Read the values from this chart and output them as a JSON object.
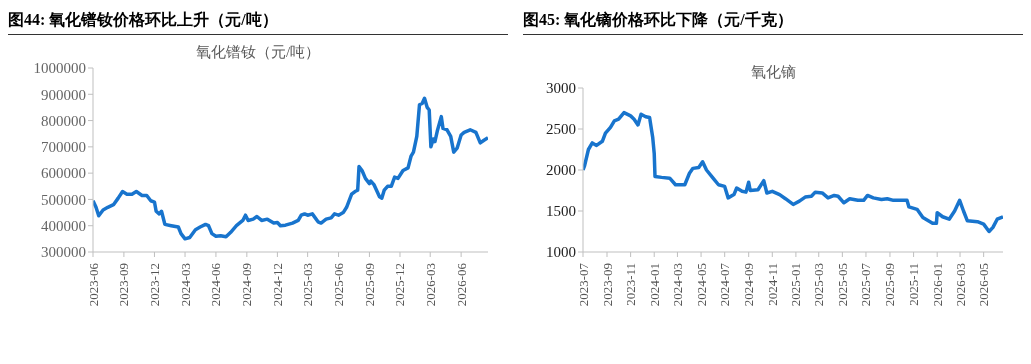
{
  "chart_data": [
    {
      "type": "line",
      "title": "图44:  氧化镨钕价格环比上升（元/吨）",
      "subtitle": "氧化镨钕（元/吨）",
      "color": "#1874cd",
      "x": [
        "2023-06-01",
        "2023-06-10",
        "2023-06-18",
        "2023-07-01",
        "2023-07-15",
        "2023-08-01",
        "2023-08-15",
        "2023-08-28",
        "2023-09-10",
        "2023-09-25",
        "2023-10-08",
        "2023-10-25",
        "2023-11-08",
        "2023-11-20",
        "2023-12-01",
        "2023-12-06",
        "2023-12-15",
        "2023-12-22",
        "2024-01-01",
        "2024-01-20",
        "2024-02-10",
        "2024-02-18",
        "2024-03-01",
        "2024-03-15",
        "2024-04-01",
        "2024-04-15",
        "2024-05-01",
        "2024-05-10",
        "2024-05-20",
        "2024-06-01",
        "2024-06-15",
        "2024-07-01",
        "2024-07-15",
        "2024-08-01",
        "2024-08-20",
        "2024-08-28",
        "2024-09-05",
        "2024-09-20",
        "2024-10-01",
        "2024-10-15",
        "2024-11-01",
        "2024-11-20",
        "2024-12-01",
        "2024-12-10",
        "2024-12-25",
        "2025-01-15",
        "2025-02-01",
        "2025-02-10",
        "2025-02-20",
        "2025-03-01",
        "2025-03-15",
        "2025-04-01",
        "2025-04-10",
        "2025-04-25",
        "2025-05-10",
        "2025-05-20",
        "2025-06-01",
        "2025-06-15",
        "2025-06-25",
        "2025-07-10",
        "2025-07-20",
        "2025-07-28",
        "2025-08-01",
        "2025-08-10",
        "2025-08-20",
        "2025-09-01",
        "2025-09-05",
        "2025-09-15",
        "2025-10-01",
        "2025-10-08",
        "2025-10-15",
        "2025-10-25",
        "2025-11-05",
        "2025-11-15",
        "2025-11-25",
        "2025-12-10",
        "2025-12-25",
        "2026-01-03",
        "2026-01-10",
        "2026-01-20",
        "2026-01-28",
        "2026-02-05",
        "2026-02-12",
        "2026-02-20",
        "2026-02-26",
        "2026-03-03",
        "2026-03-10",
        "2026-03-15",
        "2026-03-22",
        "2026-04-03",
        "2026-04-08",
        "2026-04-20",
        "2026-05-01",
        "2026-05-10",
        "2026-05-20",
        "2026-06-01",
        "2026-06-10",
        "2026-06-28",
        "2026-07-15",
        "2026-07-28",
        "2026-08-08",
        "2026-08-20"
      ],
      "values": [
        495000,
        470000,
        438000,
        460000,
        470000,
        480000,
        505000,
        530000,
        520000,
        520000,
        530000,
        515000,
        515000,
        495000,
        490000,
        455000,
        445000,
        455000,
        405000,
        400000,
        395000,
        370000,
        350000,
        355000,
        385000,
        395000,
        405000,
        400000,
        370000,
        360000,
        362000,
        358000,
        375000,
        400000,
        420000,
        440000,
        420000,
        425000,
        435000,
        420000,
        425000,
        410000,
        412000,
        400000,
        402000,
        410000,
        420000,
        440000,
        445000,
        440000,
        445000,
        415000,
        410000,
        425000,
        430000,
        445000,
        440000,
        450000,
        470000,
        520000,
        530000,
        535000,
        625000,
        610000,
        580000,
        560000,
        570000,
        555000,
        510000,
        505000,
        535000,
        550000,
        550000,
        585000,
        580000,
        610000,
        620000,
        665000,
        680000,
        740000,
        860000,
        865000,
        885000,
        850000,
        840000,
        700000,
        730000,
        720000,
        760000,
        815000,
        770000,
        765000,
        740000,
        680000,
        695000,
        745000,
        755000,
        765000,
        755000,
        715000,
        725000,
        735000
      ],
      "xlim": [
        "2023-06-01",
        "2026-08-20"
      ],
      "xticks": [
        "2023-06",
        "2023-09",
        "2023-12",
        "2024-03",
        "2024-06",
        "2024-09",
        "2024-12",
        "2025-03",
        "2025-06",
        "2025-09",
        "2025-12",
        "2026-03",
        "2026-06"
      ],
      "ylim": [
        300000,
        1000000
      ],
      "yticks": [
        300000,
        400000,
        500000,
        600000,
        700000,
        800000,
        900000,
        1000000
      ]
    },
    {
      "type": "line",
      "title": "图45:  氧化镝价格环比下降（元/千克）",
      "subtitle": "氧化镝",
      "color": "#1874cd",
      "x": [
        "2023-07-01",
        "2023-07-05",
        "2023-07-15",
        "2023-07-25",
        "2023-08-05",
        "2023-08-20",
        "2023-08-28",
        "2023-09-10",
        "2023-09-20",
        "2023-10-01",
        "2023-10-15",
        "2023-11-01",
        "2023-11-10",
        "2023-11-20",
        "2023-11-28",
        "2023-12-10",
        "2023-12-20",
        "2023-12-28",
        "2024-01-01",
        "2024-01-03",
        "2024-01-20",
        "2024-02-10",
        "2024-02-25",
        "2024-03-20",
        "2024-04-01",
        "2024-04-10",
        "2024-04-25",
        "2024-05-05",
        "2024-05-15",
        "2024-06-01",
        "2024-06-15",
        "2024-07-01",
        "2024-07-10",
        "2024-07-25",
        "2024-08-01",
        "2024-08-15",
        "2024-08-25",
        "2024-09-01",
        "2024-09-05",
        "2024-09-25",
        "2024-10-10",
        "2024-10-18",
        "2024-11-01",
        "2024-11-20",
        "2024-12-05",
        "2024-12-25",
        "2025-01-10",
        "2025-01-25",
        "2025-02-10",
        "2025-02-20",
        "2025-03-10",
        "2025-03-25",
        "2025-04-10",
        "2025-04-20",
        "2025-05-05",
        "2025-05-20",
        "2025-06-10",
        "2025-06-25",
        "2025-07-05",
        "2025-07-20",
        "2025-08-10",
        "2025-08-25",
        "2025-09-10",
        "2025-10-01",
        "2025-10-15",
        "2025-10-20",
        "2025-11-10",
        "2025-11-25",
        "2025-12-20",
        "2025-12-30",
        "2026-01-01",
        "2026-01-15",
        "2026-02-01",
        "2026-02-15",
        "2026-02-28",
        "2026-03-10",
        "2026-03-20",
        "2026-04-15",
        "2026-05-01",
        "2026-05-15",
        "2026-05-25",
        "2026-06-05",
        "2026-06-20"
      ],
      "values": [
        2000,
        2050,
        2250,
        2330,
        2300,
        2350,
        2450,
        2520,
        2600,
        2620,
        2700,
        2660,
        2620,
        2550,
        2680,
        2650,
        2640,
        2400,
        2200,
        1920,
        1910,
        1900,
        1820,
        1820,
        1960,
        2020,
        2030,
        2100,
        2000,
        1900,
        1820,
        1800,
        1660,
        1700,
        1780,
        1740,
        1730,
        1850,
        1750,
        1760,
        1870,
        1720,
        1740,
        1700,
        1650,
        1580,
        1620,
        1670,
        1680,
        1730,
        1720,
        1660,
        1690,
        1680,
        1600,
        1650,
        1630,
        1630,
        1690,
        1660,
        1640,
        1650,
        1630,
        1630,
        1630,
        1550,
        1520,
        1420,
        1350,
        1350,
        1480,
        1430,
        1400,
        1500,
        1630,
        1500,
        1380,
        1370,
        1340,
        1250,
        1300,
        1400,
        1430
      ],
      "xlim": [
        "2023-07-01",
        "2026-06-20"
      ],
      "xticks": [
        "2023-07",
        "2023-09",
        "2023-11",
        "2024-01",
        "2024-03",
        "2024-05",
        "2024-07",
        "2024-09",
        "2024-11",
        "2025-01",
        "2025-03",
        "2025-05",
        "2025-07",
        "2025-09",
        "2025-11",
        "2026-01",
        "2026-03",
        "2026-05"
      ],
      "ylim": [
        1000,
        3000
      ],
      "yticks": [
        1000,
        1500,
        2000,
        2500,
        3000
      ]
    }
  ]
}
